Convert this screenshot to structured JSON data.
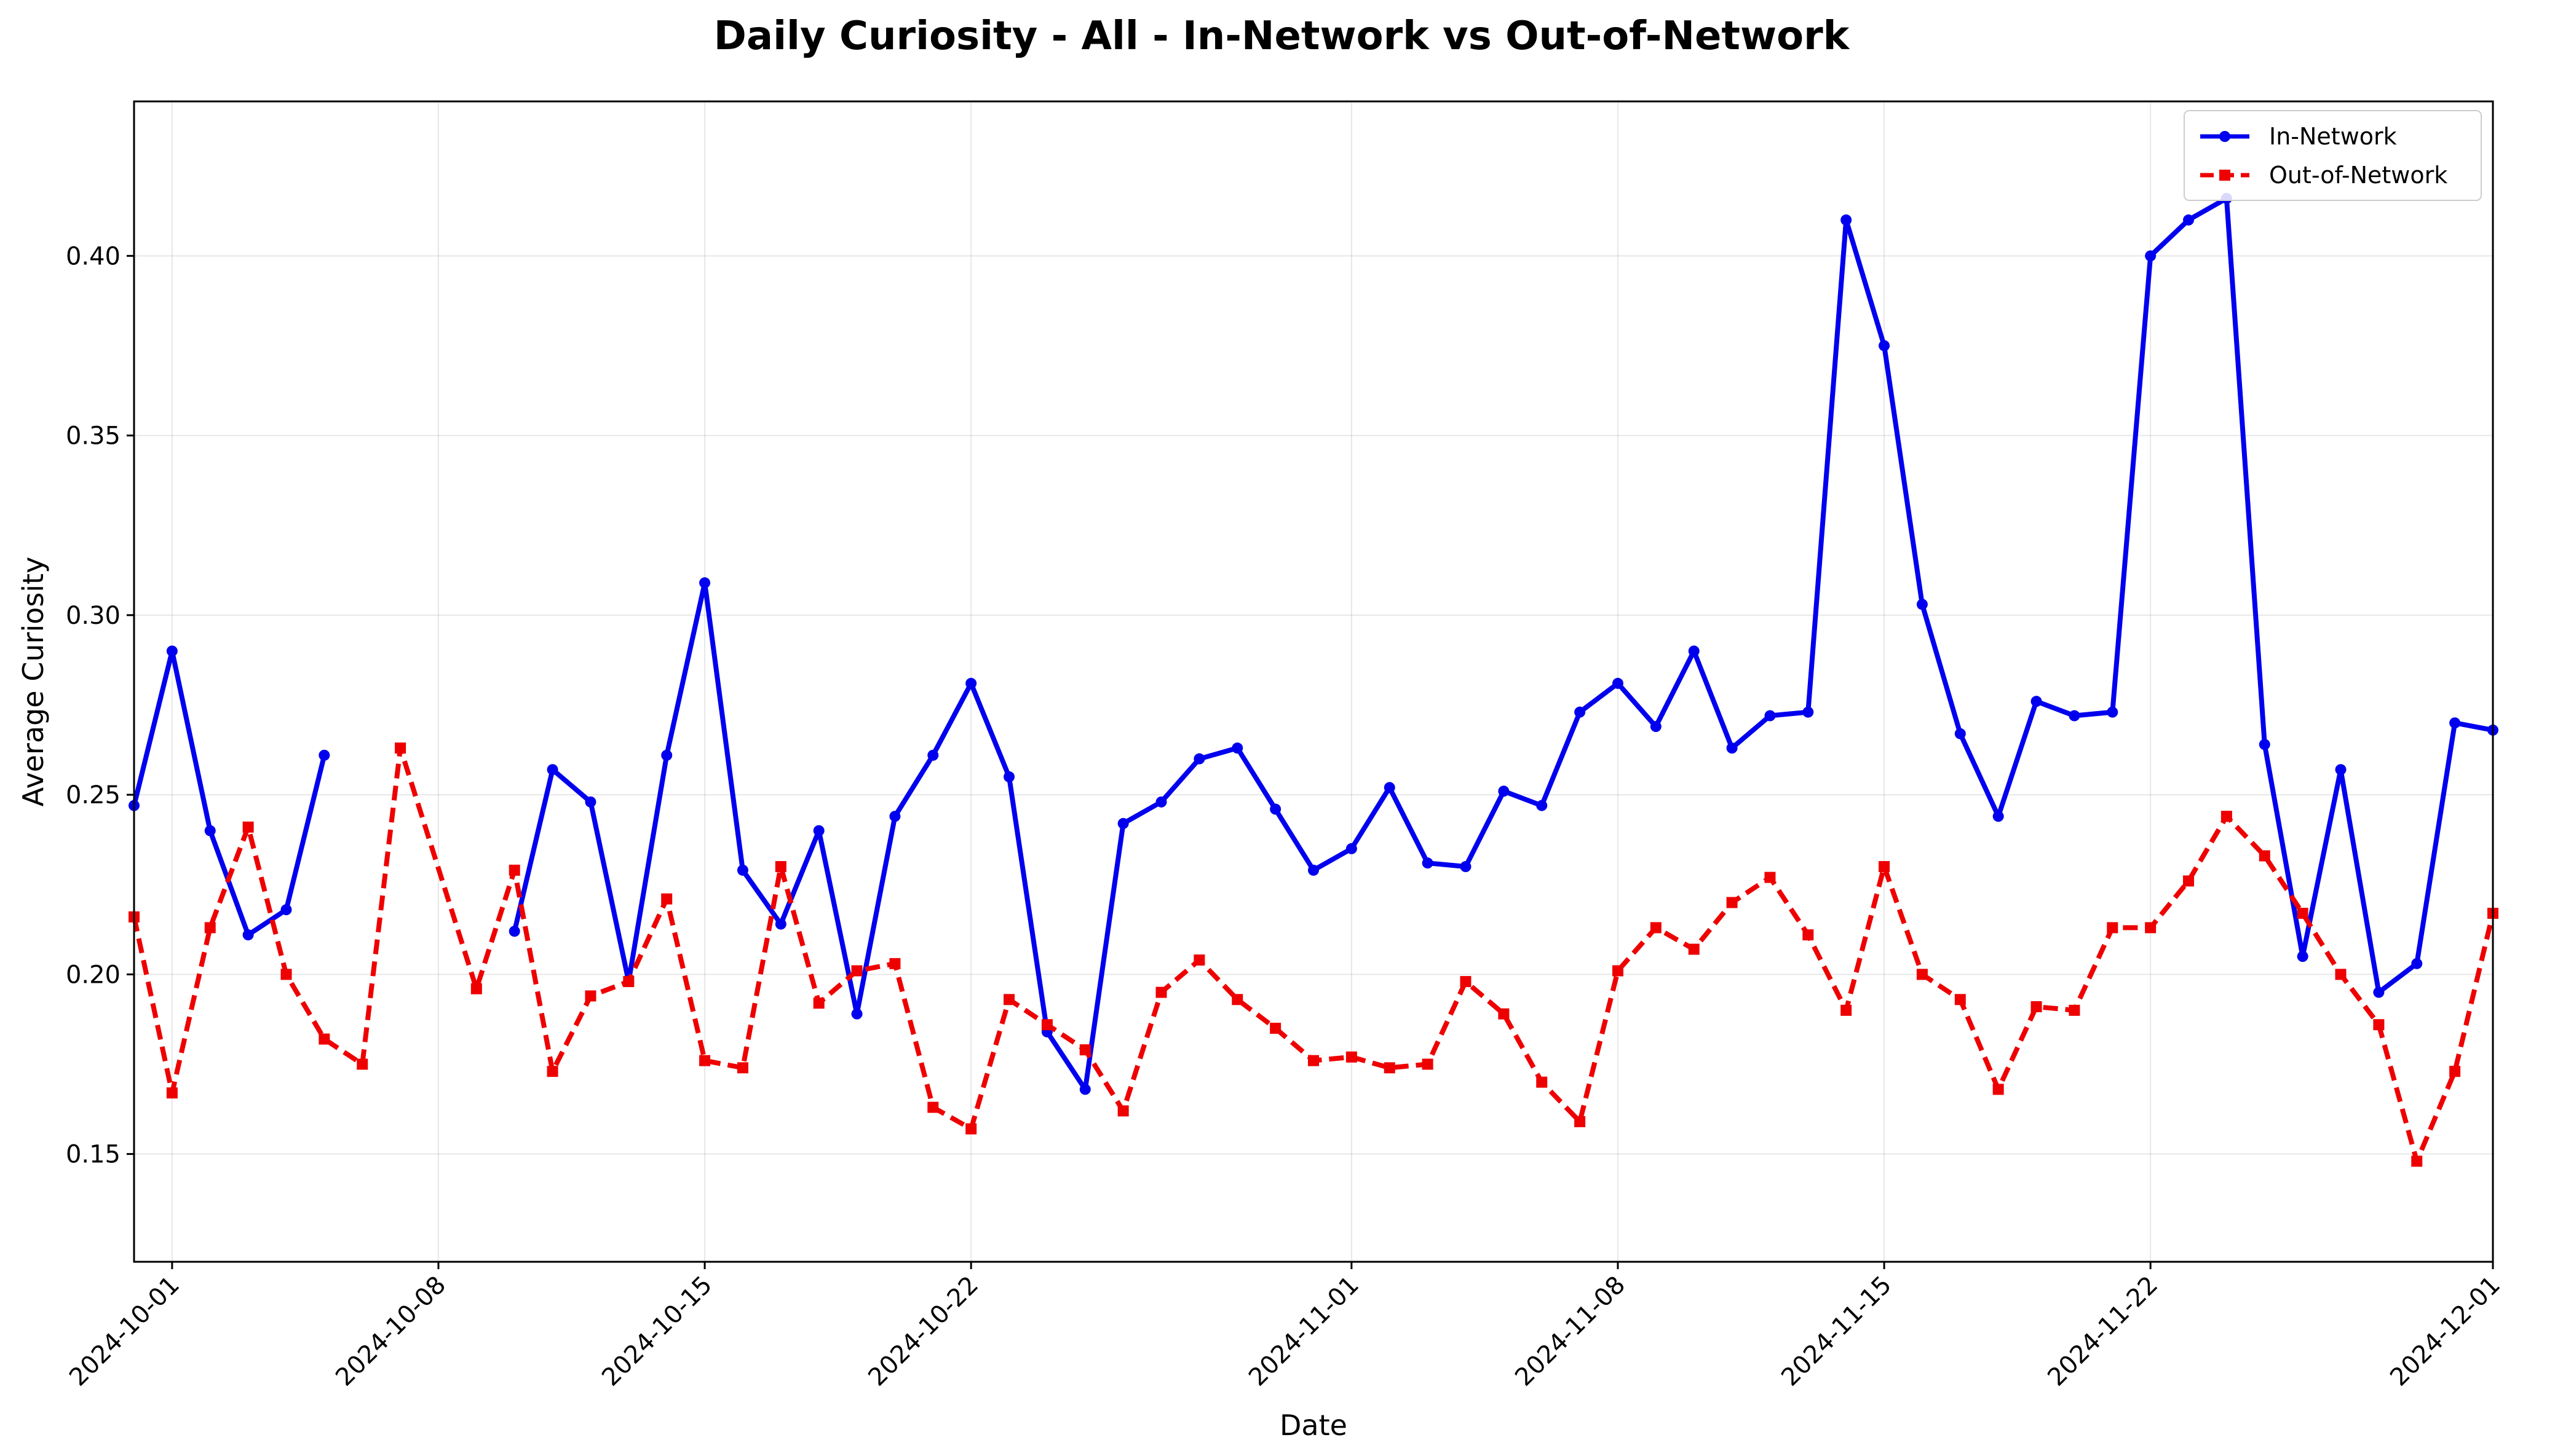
{
  "chart_data": {
    "type": "line",
    "title": "Daily Curiosity - All - In-Network vs Out-of-Network",
    "xlabel": "Date",
    "ylabel": "Average Curiosity",
    "xlim": [
      "2024-09-30",
      "2024-12-01"
    ],
    "ylim": [
      0.12,
      0.443
    ],
    "yticks": [
      0.15,
      0.2,
      0.25,
      0.3,
      0.35,
      0.4
    ],
    "ytick_labels": [
      "0.15",
      "0.20",
      "0.25",
      "0.30",
      "0.35",
      "0.40"
    ],
    "xticks": [
      "2024-10-01",
      "2024-10-08",
      "2024-10-15",
      "2024-10-22",
      "2024-11-01",
      "2024-11-08",
      "2024-11-15",
      "2024-11-22",
      "2024-12-01"
    ],
    "grid": true,
    "legend": "top-right",
    "series": [
      {
        "name": "In-Network",
        "color": "#0000ee",
        "style": "solid",
        "marker": "circle",
        "points": [
          [
            "2024-09-30",
            0.247
          ],
          [
            "2024-10-01",
            0.29
          ],
          [
            "2024-10-02",
            0.24
          ],
          [
            "2024-10-03",
            0.211
          ],
          [
            "2024-10-04",
            0.218
          ],
          [
            "2024-10-05",
            0.261
          ],
          null,
          [
            "2024-10-10",
            0.212
          ],
          [
            "2024-10-11",
            0.257
          ],
          [
            "2024-10-12",
            0.248
          ],
          [
            "2024-10-13",
            0.198
          ],
          [
            "2024-10-14",
            0.261
          ],
          [
            "2024-10-15",
            0.309
          ],
          [
            "2024-10-16",
            0.229
          ],
          [
            "2024-10-17",
            0.214
          ],
          [
            "2024-10-18",
            0.24
          ],
          [
            "2024-10-19",
            0.189
          ],
          [
            "2024-10-20",
            0.244
          ],
          [
            "2024-10-21",
            0.261
          ],
          [
            "2024-10-22",
            0.281
          ],
          [
            "2024-10-23",
            0.255
          ],
          [
            "2024-10-24",
            0.184
          ],
          [
            "2024-10-25",
            0.168
          ],
          [
            "2024-10-26",
            0.242
          ],
          [
            "2024-10-27",
            0.248
          ],
          [
            "2024-10-28",
            0.26
          ],
          [
            "2024-10-29",
            0.263
          ],
          [
            "2024-10-30",
            0.246
          ],
          [
            "2024-10-31",
            0.229
          ],
          [
            "2024-11-01",
            0.235
          ],
          [
            "2024-11-02",
            0.252
          ],
          [
            "2024-11-03",
            0.231
          ],
          [
            "2024-11-04",
            0.23
          ],
          [
            "2024-11-05",
            0.251
          ],
          [
            "2024-11-06",
            0.247
          ],
          [
            "2024-11-07",
            0.273
          ],
          [
            "2024-11-08",
            0.281
          ],
          [
            "2024-11-09",
            0.269
          ],
          [
            "2024-11-10",
            0.29
          ],
          [
            "2024-11-11",
            0.263
          ],
          [
            "2024-11-12",
            0.272
          ],
          [
            "2024-11-13",
            0.273
          ],
          [
            "2024-11-14",
            0.41
          ],
          [
            "2024-11-15",
            0.375
          ],
          [
            "2024-11-16",
            0.303
          ],
          [
            "2024-11-17",
            0.267
          ],
          [
            "2024-11-18",
            0.244
          ],
          [
            "2024-11-19",
            0.276
          ],
          [
            "2024-11-20",
            0.272
          ],
          [
            "2024-11-21",
            0.273
          ],
          [
            "2024-11-22",
            0.4
          ],
          [
            "2024-11-23",
            0.41
          ],
          [
            "2024-11-24",
            0.416
          ],
          [
            "2024-11-25",
            0.264
          ],
          [
            "2024-11-26",
            0.205
          ],
          [
            "2024-11-27",
            0.257
          ],
          [
            "2024-11-28",
            0.195
          ],
          [
            "2024-11-29",
            0.203
          ],
          [
            "2024-11-30",
            0.27
          ],
          [
            "2024-12-01",
            0.268
          ]
        ]
      },
      {
        "name": "Out-of-Network",
        "color": "#ee0000",
        "style": "dashed",
        "marker": "square",
        "points": [
          [
            "2024-09-30",
            0.216
          ],
          [
            "2024-10-01",
            0.167
          ],
          [
            "2024-10-02",
            0.213
          ],
          [
            "2024-10-03",
            0.241
          ],
          [
            "2024-10-04",
            0.2
          ],
          [
            "2024-10-05",
            0.182
          ],
          [
            "2024-10-06",
            0.175
          ],
          [
            "2024-10-07",
            0.263
          ],
          [
            "2024-10-09",
            0.196
          ],
          [
            "2024-10-10",
            0.229
          ],
          [
            "2024-10-11",
            0.173
          ],
          [
            "2024-10-12",
            0.194
          ],
          [
            "2024-10-13",
            0.198
          ],
          [
            "2024-10-14",
            0.221
          ],
          [
            "2024-10-15",
            0.176
          ],
          [
            "2024-10-16",
            0.174
          ],
          [
            "2024-10-17",
            0.23
          ],
          [
            "2024-10-18",
            0.192
          ],
          [
            "2024-10-19",
            0.201
          ],
          [
            "2024-10-20",
            0.203
          ],
          [
            "2024-10-21",
            0.163
          ],
          [
            "2024-10-22",
            0.157
          ],
          [
            "2024-10-23",
            0.193
          ],
          [
            "2024-10-24",
            0.186
          ],
          [
            "2024-10-25",
            0.179
          ],
          [
            "2024-10-26",
            0.162
          ],
          [
            "2024-10-27",
            0.195
          ],
          [
            "2024-10-28",
            0.204
          ],
          [
            "2024-10-29",
            0.193
          ],
          [
            "2024-10-30",
            0.185
          ],
          [
            "2024-10-31",
            0.176
          ],
          [
            "2024-11-01",
            0.177
          ],
          [
            "2024-11-02",
            0.174
          ],
          [
            "2024-11-03",
            0.175
          ],
          [
            "2024-11-04",
            0.198
          ],
          [
            "2024-11-05",
            0.189
          ],
          [
            "2024-11-06",
            0.17
          ],
          [
            "2024-11-07",
            0.159
          ],
          [
            "2024-11-08",
            0.201
          ],
          [
            "2024-11-09",
            0.213
          ],
          [
            "2024-11-10",
            0.207
          ],
          [
            "2024-11-11",
            0.22
          ],
          [
            "2024-11-12",
            0.227
          ],
          [
            "2024-11-13",
            0.211
          ],
          [
            "2024-11-14",
            0.19
          ],
          [
            "2024-11-15",
            0.23
          ],
          [
            "2024-11-16",
            0.2
          ],
          [
            "2024-11-17",
            0.193
          ],
          [
            "2024-11-18",
            0.168
          ],
          [
            "2024-11-19",
            0.191
          ],
          [
            "2024-11-20",
            0.19
          ],
          [
            "2024-11-21",
            0.213
          ],
          [
            "2024-11-22",
            0.213
          ],
          [
            "2024-11-23",
            0.226
          ],
          [
            "2024-11-24",
            0.244
          ],
          [
            "2024-11-25",
            0.233
          ],
          [
            "2024-11-26",
            0.217
          ],
          [
            "2024-11-27",
            0.2
          ],
          [
            "2024-11-28",
            0.186
          ],
          [
            "2024-11-29",
            0.148
          ],
          [
            "2024-11-30",
            0.173
          ],
          [
            "2024-12-01",
            0.217
          ]
        ]
      }
    ]
  }
}
